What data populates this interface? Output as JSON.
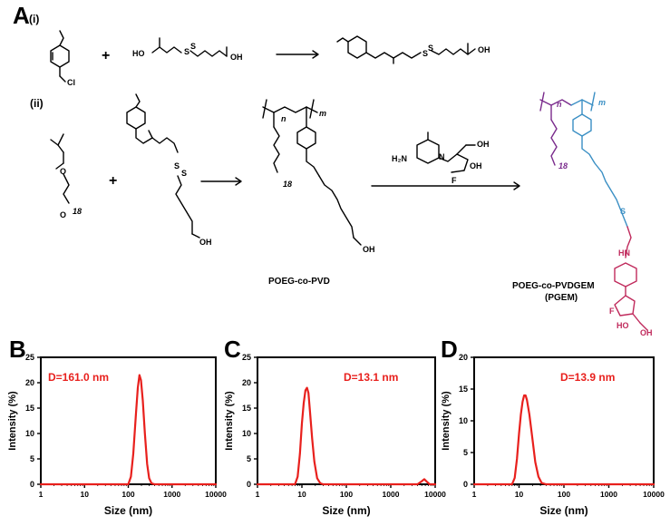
{
  "panel_a": {
    "letter": "A",
    "step_i": "(i)",
    "step_ii": "(ii)",
    "plus": "+",
    "product_1_name": "POEG-co-PVD",
    "product_2_name_line1": "POEG-co-PVDGEM",
    "product_2_name_line2": "(PGEM)",
    "atoms": {
      "cl": "Cl",
      "ho": "HO",
      "oh": "OH",
      "s": "S",
      "o": "O",
      "n": "N",
      "nh2_left": "H₂N",
      "hn": "HN",
      "f": "F",
      "ho_sugar": "HO",
      "oh_sugar": "OH",
      "sub_n": "n",
      "sub_m": "m",
      "sub_18": "18"
    }
  },
  "colors": {
    "poeg_block": "#7a2b8c",
    "pvd_block": "#3a8fc4",
    "gem_block": "#c02a5c",
    "curve": "#e8201d",
    "label_red": "#e8201d"
  },
  "chart_data": [
    {
      "panel": "B",
      "type": "line",
      "annotation": "D=161.0 nm",
      "xlabel": "Size (nm)",
      "ylabel": "Intensity (%)",
      "xscale": "log",
      "xlim": [
        1,
        10000
      ],
      "ylim": [
        0,
        25
      ],
      "x_ticks": [
        "1",
        "10",
        "100",
        "1000",
        "10000"
      ],
      "y_ticks": [
        "0",
        "5",
        "10",
        "15",
        "20",
        "25"
      ],
      "series": [
        {
          "x": [
            1,
            50,
            100,
            115,
            130,
            150,
            165,
            180,
            195,
            215,
            240,
            270,
            300,
            340,
            400,
            1000,
            10000
          ],
          "y": [
            0,
            0,
            0,
            1.5,
            6,
            14,
            19,
            21.5,
            20.5,
            16.5,
            10,
            4,
            1.2,
            0.2,
            0,
            0,
            0
          ]
        }
      ]
    },
    {
      "panel": "C",
      "type": "line",
      "annotation": "D=13.1 nm",
      "xlabel": "Size (nm)",
      "ylabel": "Intensity (%)",
      "xscale": "log",
      "xlim": [
        1,
        10000
      ],
      "ylim": [
        0,
        25
      ],
      "x_ticks": [
        "1",
        "10",
        "100",
        "1000",
        "10000"
      ],
      "y_ticks": [
        "0",
        "5",
        "10",
        "15",
        "20",
        "25"
      ],
      "series": [
        {
          "x": [
            1,
            5,
            7,
            8,
            9,
            10,
            11,
            12,
            13,
            14,
            15,
            17,
            19,
            22,
            26,
            30,
            100,
            4000,
            5000,
            5700,
            6500,
            7500,
            10000
          ],
          "y": [
            0,
            0,
            0,
            1.5,
            6,
            12,
            16,
            18.5,
            19,
            18,
            15,
            9,
            4.5,
            1.2,
            0.2,
            0,
            0,
            0,
            0.6,
            1.0,
            0.5,
            0,
            0
          ]
        }
      ]
    },
    {
      "panel": "D",
      "type": "line",
      "annotation": "D=13.9 nm",
      "xlabel": "Size (nm)",
      "ylabel": "Intensity (%)",
      "xscale": "log",
      "xlim": [
        1,
        10000
      ],
      "ylim": [
        0,
        20
      ],
      "x_ticks": [
        "1",
        "10",
        "100",
        "1000",
        "10000"
      ],
      "y_ticks": [
        "0",
        "5",
        "10",
        "15",
        "20"
      ],
      "series": [
        {
          "x": [
            1,
            5,
            7,
            8,
            9,
            10,
            11,
            12,
            13,
            14,
            15,
            17,
            20,
            23,
            27,
            32,
            40,
            100,
            10000
          ],
          "y": [
            0,
            0,
            0,
            1,
            4,
            8,
            11,
            13,
            14,
            14,
            13.3,
            11,
            7,
            3.5,
            1.2,
            0.2,
            0,
            0,
            0
          ]
        }
      ]
    }
  ]
}
